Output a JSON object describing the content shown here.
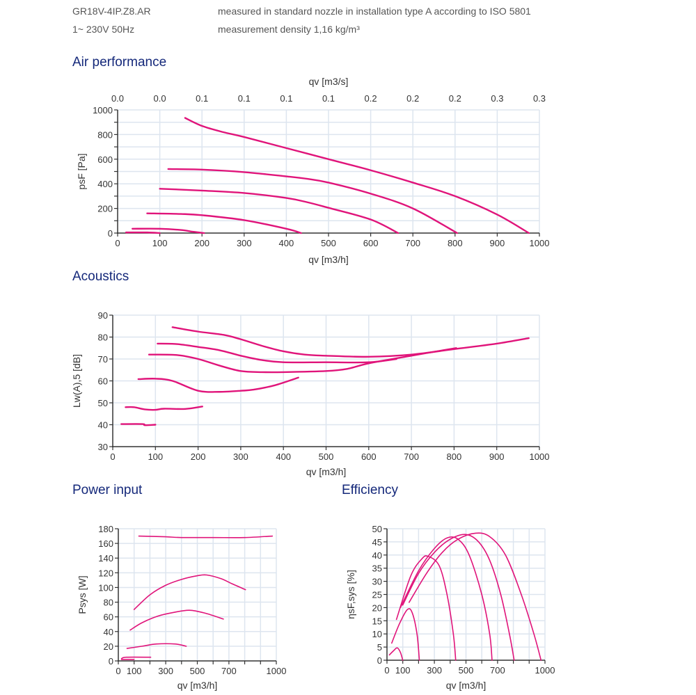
{
  "header": {
    "model": "GR18V-4IP.Z8.AR",
    "supply": "1~ 230V 50Hz",
    "measurement": "measured in standard nozzle in installation type A according to ISO 5801",
    "density": "measurement density 1,16 kg/m³"
  },
  "sections": {
    "air": "Air performance",
    "acoustics": "Acoustics",
    "power": "Power input",
    "efficiency": "Efficiency"
  },
  "colors": {
    "curve": "#e0147a",
    "grid": "#dde5ef",
    "axis": "#333333",
    "title": "#14287a"
  },
  "chart_data": [
    {
      "id": "air",
      "type": "line",
      "title": "Air performance",
      "xlabel": "qv [m3/h]",
      "x2label": "qv [m3/s]",
      "ylabel": "psF [Pa]",
      "xlim": [
        0,
        1000
      ],
      "ylim": [
        0,
        1000
      ],
      "xticks": [
        0,
        100,
        200,
        300,
        400,
        500,
        600,
        700,
        800,
        900,
        1000
      ],
      "xticklabels": [
        "0",
        "100",
        "200",
        "300",
        "400",
        "500",
        "600",
        "700",
        "800",
        "900",
        "1000"
      ],
      "x2ticklabels": [
        "0.0",
        "0.0",
        "0.1",
        "0.1",
        "0.1",
        "0.1",
        "0.2",
        "0.2",
        "0.2",
        "0.3",
        "0.3"
      ],
      "yticks": [
        0,
        200,
        400,
        600,
        800,
        1000
      ],
      "yticklabels": [
        "0",
        "200",
        "400",
        "600",
        "800",
        "1000"
      ],
      "yminor": 100,
      "grid": true,
      "series": [
        {
          "name": "curve-1",
          "points": [
            [
              160,
              935
            ],
            [
              200,
              870
            ],
            [
              250,
              820
            ],
            [
              300,
              780
            ],
            [
              400,
              690
            ],
            [
              500,
              600
            ],
            [
              600,
              510
            ],
            [
              700,
              410
            ],
            [
              800,
              300
            ],
            [
              900,
              150
            ],
            [
              975,
              0
            ]
          ]
        },
        {
          "name": "curve-2",
          "points": [
            [
              120,
              520
            ],
            [
              200,
              515
            ],
            [
              300,
              495
            ],
            [
              400,
              460
            ],
            [
              450,
              440
            ],
            [
              500,
              410
            ],
            [
              600,
              320
            ],
            [
              700,
              200
            ],
            [
              805,
              0
            ]
          ]
        },
        {
          "name": "curve-3",
          "points": [
            [
              100,
              360
            ],
            [
              200,
              345
            ],
            [
              300,
              325
            ],
            [
              400,
              285
            ],
            [
              450,
              250
            ],
            [
              500,
              205
            ],
            [
              600,
              110
            ],
            [
              665,
              0
            ]
          ]
        },
        {
          "name": "curve-4",
          "points": [
            [
              70,
              160
            ],
            [
              150,
              155
            ],
            [
              200,
              145
            ],
            [
              300,
              105
            ],
            [
              400,
              35
            ],
            [
              435,
              0
            ]
          ]
        },
        {
          "name": "curve-5",
          "points": [
            [
              35,
              35
            ],
            [
              100,
              35
            ],
            [
              150,
              25
            ],
            [
              180,
              10
            ],
            [
              205,
              0
            ]
          ]
        },
        {
          "name": "curve-6",
          "points": [
            [
              20,
              5
            ],
            [
              70,
              5
            ],
            [
              100,
              0
            ]
          ]
        }
      ]
    },
    {
      "id": "acoustics",
      "type": "line",
      "title": "Acoustics",
      "xlabel": "qv [m3/h]",
      "ylabel": "Lw(A),5 [dB]",
      "xlim": [
        0,
        1000
      ],
      "ylim": [
        30,
        90
      ],
      "xticks": [
        0,
        100,
        200,
        300,
        400,
        500,
        600,
        700,
        800,
        900,
        1000
      ],
      "xticklabels": [
        "0",
        "100",
        "200",
        "300",
        "400",
        "500",
        "600",
        "700",
        "800",
        "900",
        "1000"
      ],
      "yticks": [
        30,
        40,
        50,
        60,
        70,
        80,
        90
      ],
      "yticklabels": [
        "30",
        "40",
        "50",
        "60",
        "70",
        "80",
        "90"
      ],
      "grid": true,
      "series": [
        {
          "name": "curve-1",
          "points": [
            [
              140,
              84.5
            ],
            [
              200,
              82.5
            ],
            [
              260,
              81
            ],
            [
              300,
              79
            ],
            [
              350,
              76
            ],
            [
              400,
              73.5
            ],
            [
              450,
              72
            ],
            [
              500,
              71.5
            ],
            [
              600,
              71
            ],
            [
              700,
              72
            ],
            [
              800,
              74.5
            ],
            [
              900,
              77
            ],
            [
              975,
              79.5
            ]
          ]
        },
        {
          "name": "curve-2",
          "points": [
            [
              105,
              77
            ],
            [
              150,
              76.8
            ],
            [
              200,
              75.5
            ],
            [
              250,
              74
            ],
            [
              300,
              71.5
            ],
            [
              350,
              69.5
            ],
            [
              400,
              68.5
            ],
            [
              500,
              68.5
            ],
            [
              600,
              68.5
            ],
            [
              665,
              70
            ]
          ]
        },
        {
          "name": "curve-3",
          "points": [
            [
              85,
              72
            ],
            [
              150,
              71.8
            ],
            [
              200,
              70
            ],
            [
              250,
              67
            ],
            [
              300,
              64.5
            ],
            [
              350,
              64
            ],
            [
              400,
              64
            ],
            [
              500,
              64.5
            ],
            [
              550,
              65.5
            ],
            [
              600,
              68
            ],
            [
              700,
              71.5
            ],
            [
              805,
              75
            ]
          ]
        },
        {
          "name": "curve-4",
          "points": [
            [
              60,
              60.8
            ],
            [
              100,
              61
            ],
            [
              140,
              60
            ],
            [
              200,
              55.5
            ],
            [
              250,
              55
            ],
            [
              300,
              55.5
            ],
            [
              330,
              56
            ],
            [
              380,
              58
            ],
            [
              435,
              61.5
            ]
          ]
        },
        {
          "name": "curve-5",
          "points": [
            [
              30,
              48
            ],
            [
              50,
              48
            ],
            [
              75,
              47
            ],
            [
              100,
              46.8
            ],
            [
              120,
              47.3
            ],
            [
              170,
              47.2
            ],
            [
              210,
              48.3
            ]
          ]
        },
        {
          "name": "curve-6",
          "points": [
            [
              20,
              40.3
            ],
            [
              70,
              40.3
            ],
            [
              75,
              39.8
            ],
            [
              100,
              40
            ]
          ]
        }
      ]
    },
    {
      "id": "power",
      "type": "line",
      "title": "Power input",
      "xlabel": "qv [m3/h]",
      "ylabel": "Psys [W]",
      "xlim": [
        0,
        1000
      ],
      "ylim": [
        0,
        180
      ],
      "xticks": [
        0,
        100,
        200,
        300,
        400,
        500,
        600,
        700,
        800,
        900,
        1000
      ],
      "xticklabels": [
        "0",
        "100",
        "",
        "300",
        "",
        "500",
        "",
        "700",
        "",
        "",
        "1000"
      ],
      "yticks": [
        0,
        20,
        40,
        60,
        80,
        100,
        120,
        140,
        160,
        180
      ],
      "yticklabels": [
        "0",
        "20",
        "40",
        "60",
        "80",
        "100",
        "120",
        "140",
        "160",
        "180"
      ],
      "grid": true,
      "series": [
        {
          "name": "curve-1",
          "points": [
            [
              130,
              170
            ],
            [
              300,
              169
            ],
            [
              400,
              168
            ],
            [
              600,
              168
            ],
            [
              800,
              168
            ],
            [
              975,
              170
            ]
          ]
        },
        {
          "name": "curve-2",
          "points": [
            [
              100,
              70
            ],
            [
              200,
              90
            ],
            [
              300,
              103
            ],
            [
              400,
              111
            ],
            [
              500,
              116
            ],
            [
              560,
              117
            ],
            [
              650,
              112
            ],
            [
              720,
              105
            ],
            [
              805,
              97
            ]
          ]
        },
        {
          "name": "curve-3",
          "points": [
            [
              75,
              42
            ],
            [
              150,
              52
            ],
            [
              250,
              61
            ],
            [
              350,
              66
            ],
            [
              450,
              69
            ],
            [
              550,
              65
            ],
            [
              665,
              57
            ]
          ]
        },
        {
          "name": "curve-4",
          "points": [
            [
              55,
              17
            ],
            [
              150,
              20
            ],
            [
              240,
              23
            ],
            [
              360,
              23
            ],
            [
              430,
              20
            ]
          ]
        },
        {
          "name": "curve-5",
          "points": [
            [
              20,
              3
            ],
            [
              50,
              5
            ],
            [
              205,
              5
            ]
          ]
        },
        {
          "name": "curve-6",
          "points": [
            [
              20,
              2
            ],
            [
              100,
              2
            ]
          ]
        }
      ]
    },
    {
      "id": "efficiency",
      "type": "line",
      "title": "Efficiency",
      "xlabel": "qv [m3/h]",
      "ylabel": "ηsF,sys [%]",
      "xlim": [
        0,
        1000
      ],
      "ylim": [
        0,
        50
      ],
      "xticks": [
        0,
        100,
        200,
        300,
        400,
        500,
        600,
        700,
        800,
        900,
        1000
      ],
      "xticklabels": [
        "0",
        "100",
        "",
        "300",
        "",
        "500",
        "",
        "700",
        "",
        "",
        "1000"
      ],
      "yticks": [
        0,
        5,
        10,
        15,
        20,
        25,
        30,
        35,
        40,
        45,
        50
      ],
      "yticklabels": [
        "0",
        "5",
        "10",
        "15",
        "20",
        "25",
        "30",
        "35",
        "40",
        "45",
        "50"
      ],
      "grid": true,
      "series": [
        {
          "name": "curve-1",
          "points": [
            [
              140,
              22
            ],
            [
              250,
              33
            ],
            [
              350,
              41
            ],
            [
              450,
              46
            ],
            [
              560,
              48.3
            ],
            [
              650,
              47
            ],
            [
              750,
              40
            ],
            [
              850,
              25
            ],
            [
              930,
              10
            ],
            [
              975,
              0
            ]
          ]
        },
        {
          "name": "curve-2",
          "points": [
            [
              100,
              21
            ],
            [
              200,
              33
            ],
            [
              300,
              41
            ],
            [
              400,
              46
            ],
            [
              500,
              47.8
            ],
            [
              580,
              45
            ],
            [
              650,
              38
            ],
            [
              720,
              25
            ],
            [
              775,
              10
            ],
            [
              805,
              0
            ]
          ]
        },
        {
          "name": "curve-3",
          "points": [
            [
              85,
              20
            ],
            [
              200,
              34
            ],
            [
              300,
              42.5
            ],
            [
              380,
              46.5
            ],
            [
              450,
              46
            ],
            [
              520,
              40
            ],
            [
              600,
              25
            ],
            [
              650,
              10
            ],
            [
              665,
              0
            ]
          ]
        },
        {
          "name": "curve-4",
          "points": [
            [
              60,
              15.5
            ],
            [
              150,
              32
            ],
            [
              220,
              38.5
            ],
            [
              260,
              39.5
            ],
            [
              330,
              36
            ],
            [
              380,
              25
            ],
            [
              420,
              10
            ],
            [
              435,
              0
            ]
          ]
        },
        {
          "name": "curve-5",
          "points": [
            [
              30,
              6.5
            ],
            [
              80,
              14
            ],
            [
              130,
              19.3
            ],
            [
              160,
              18
            ],
            [
              190,
              10
            ],
            [
              205,
              0
            ]
          ]
        },
        {
          "name": "curve-6",
          "points": [
            [
              15,
              2
            ],
            [
              40,
              3.5
            ],
            [
              65,
              4.7
            ],
            [
              85,
              3
            ],
            [
              100,
              0
            ]
          ]
        }
      ]
    }
  ]
}
